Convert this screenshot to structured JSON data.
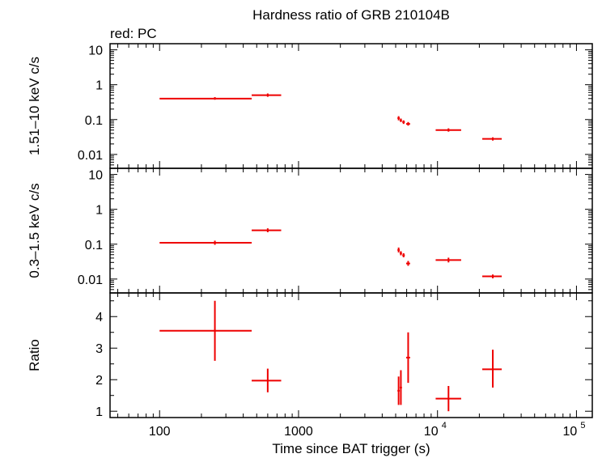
{
  "chart_data": {
    "type": "scatter",
    "title": "Hardness ratio of GRB 210104B",
    "subtitle": "red: PC",
    "xlabel": "Time since BAT trigger (s)",
    "x_scale": "log",
    "xlim": [
      44,
      130000
    ],
    "x_ticks": [
      {
        "value": 100,
        "label": "100"
      },
      {
        "value": 1000,
        "label": "1000"
      },
      {
        "value": 10000,
        "base": "10",
        "exp": "4"
      },
      {
        "value": 100000,
        "base": "10",
        "exp": "5"
      }
    ],
    "series_color": "#ee0000",
    "grid": false,
    "panels": [
      {
        "name": "hard",
        "ylabel": "1.51–10 keV c/s",
        "y_scale": "log",
        "ylim": [
          0.004,
          15
        ],
        "y_ticks": [
          {
            "value": 10,
            "label": "10"
          },
          {
            "value": 1,
            "label": "1"
          },
          {
            "value": 0.1,
            "label": "0.1"
          },
          {
            "value": 0.01,
            "label": "0.01"
          }
        ],
        "points": [
          {
            "x": 250,
            "xlo": 100,
            "xhi": 460,
            "y": 0.4,
            "ylo": 0.37,
            "yhi": 0.44
          },
          {
            "x": 600,
            "xlo": 460,
            "xhi": 750,
            "y": 0.5,
            "ylo": 0.45,
            "yhi": 0.56
          },
          {
            "x": 5250,
            "xlo": 5150,
            "xhi": 5350,
            "y": 0.11,
            "ylo": 0.095,
            "yhi": 0.125
          },
          {
            "x": 5450,
            "xlo": 5350,
            "xhi": 5550,
            "y": 0.095,
            "ylo": 0.085,
            "yhi": 0.107
          },
          {
            "x": 5700,
            "xlo": 5580,
            "xhi": 5820,
            "y": 0.085,
            "ylo": 0.075,
            "yhi": 0.095
          },
          {
            "x": 6150,
            "xlo": 5950,
            "xhi": 6350,
            "y": 0.075,
            "ylo": 0.067,
            "yhi": 0.085
          },
          {
            "x": 12000,
            "xlo": 9700,
            "xhi": 14800,
            "y": 0.05,
            "ylo": 0.045,
            "yhi": 0.056
          },
          {
            "x": 25000,
            "xlo": 21000,
            "xhi": 29000,
            "y": 0.028,
            "ylo": 0.025,
            "yhi": 0.031
          }
        ]
      },
      {
        "name": "soft",
        "ylabel": "0.3–1.5 keV c/s",
        "y_scale": "log",
        "ylim": [
          0.004,
          15
        ],
        "y_ticks": [
          {
            "value": 10,
            "label": "10"
          },
          {
            "value": 1,
            "label": "1"
          },
          {
            "value": 0.1,
            "label": "0.1"
          },
          {
            "value": 0.01,
            "label": "0.01"
          }
        ],
        "points": [
          {
            "x": 250,
            "xlo": 100,
            "xhi": 460,
            "y": 0.11,
            "ylo": 0.096,
            "yhi": 0.126
          },
          {
            "x": 600,
            "xlo": 460,
            "xhi": 750,
            "y": 0.25,
            "ylo": 0.22,
            "yhi": 0.285
          },
          {
            "x": 5250,
            "xlo": 5150,
            "xhi": 5350,
            "y": 0.068,
            "ylo": 0.058,
            "yhi": 0.08
          },
          {
            "x": 5450,
            "xlo": 5350,
            "xhi": 5550,
            "y": 0.055,
            "ylo": 0.048,
            "yhi": 0.063
          },
          {
            "x": 5700,
            "xlo": 5580,
            "xhi": 5820,
            "y": 0.048,
            "ylo": 0.042,
            "yhi": 0.055
          },
          {
            "x": 6150,
            "xlo": 5950,
            "xhi": 6350,
            "y": 0.028,
            "ylo": 0.024,
            "yhi": 0.033
          },
          {
            "x": 12000,
            "xlo": 9700,
            "xhi": 14800,
            "y": 0.035,
            "ylo": 0.03,
            "yhi": 0.041
          },
          {
            "x": 25000,
            "xlo": 21000,
            "xhi": 29000,
            "y": 0.012,
            "ylo": 0.0105,
            "yhi": 0.0135
          }
        ]
      },
      {
        "name": "ratio",
        "ylabel": "Ratio",
        "y_scale": "linear",
        "ylim": [
          0.8,
          4.75
        ],
        "y_ticks": [
          {
            "value": 4,
            "label": "4"
          },
          {
            "value": 3,
            "label": "3"
          },
          {
            "value": 2,
            "label": "2"
          },
          {
            "value": 1,
            "label": "1"
          }
        ],
        "points": [
          {
            "x": 250,
            "xlo": 100,
            "xhi": 460,
            "y": 3.55,
            "ylo": 2.6,
            "yhi": 4.5
          },
          {
            "x": 600,
            "xlo": 460,
            "xhi": 750,
            "y": 1.97,
            "ylo": 1.6,
            "yhi": 2.35
          },
          {
            "x": 5250,
            "xlo": 5150,
            "xhi": 5350,
            "y": 1.65,
            "ylo": 1.2,
            "yhi": 2.1
          },
          {
            "x": 5450,
            "xlo": 5350,
            "xhi": 5550,
            "y": 1.75,
            "ylo": 1.2,
            "yhi": 2.3
          },
          {
            "x": 6150,
            "xlo": 5950,
            "xhi": 6350,
            "y": 2.7,
            "ylo": 1.9,
            "yhi": 3.5
          },
          {
            "x": 12000,
            "xlo": 9700,
            "xhi": 14800,
            "y": 1.4,
            "ylo": 1.0,
            "yhi": 1.8
          },
          {
            "x": 25000,
            "xlo": 21000,
            "xhi": 29000,
            "y": 2.33,
            "ylo": 1.75,
            "yhi": 2.95
          }
        ]
      }
    ]
  }
}
